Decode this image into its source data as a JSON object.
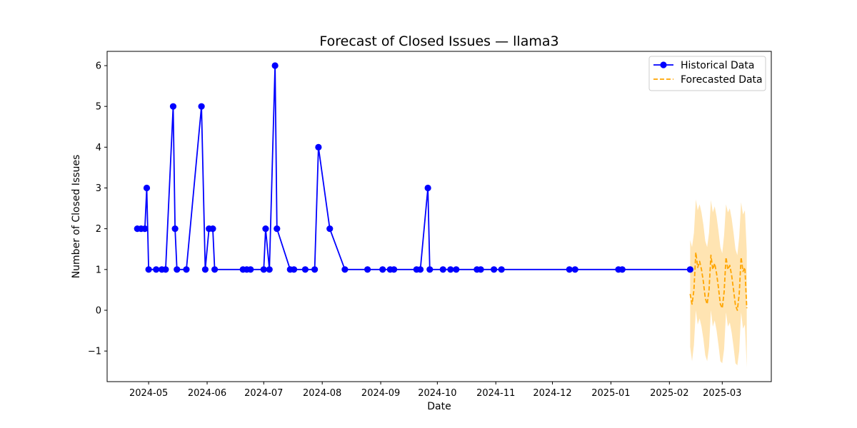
{
  "chart_data": {
    "type": "line",
    "title": "Forecast of Closed Issues — llama3",
    "xlabel": "Date",
    "ylabel": "Number of Closed Issues",
    "xlim": [
      "2024-04-09",
      "2025-03-27"
    ],
    "ylim": [
      -1.75,
      6.35
    ],
    "x_ticks": [
      "2024-05",
      "2024-06",
      "2024-07",
      "2024-08",
      "2024-09",
      "2024-10",
      "2024-11",
      "2024-12",
      "2025-01",
      "2025-02",
      "2025-03"
    ],
    "x_tick_dates": [
      "2024-05-01",
      "2024-06-01",
      "2024-07-01",
      "2024-08-01",
      "2024-09-01",
      "2024-10-01",
      "2024-11-01",
      "2024-12-01",
      "2025-01-01",
      "2025-02-01",
      "2025-03-01"
    ],
    "y_ticks": [
      -1,
      0,
      1,
      2,
      3,
      4,
      5,
      6
    ],
    "y_tick_labels": [
      "−1",
      "0",
      "1",
      "2",
      "3",
      "4",
      "5",
      "6"
    ],
    "grid": false,
    "legend_position": "top-right",
    "colors": {
      "historical": "#0000ff",
      "forecast": "#ffa500",
      "band": "#ffa500"
    },
    "series": [
      {
        "name": "Historical Data",
        "style": "solid-line-with-circle-markers",
        "x": [
          "2024-04-25",
          "2024-04-27",
          "2024-04-29",
          "2024-04-30",
          "2024-05-01",
          "2024-05-05",
          "2024-05-08",
          "2024-05-10",
          "2024-05-14",
          "2024-05-15",
          "2024-05-16",
          "2024-05-21",
          "2024-05-29",
          "2024-05-31",
          "2024-06-02",
          "2024-06-04",
          "2024-06-05",
          "2024-06-20",
          "2024-06-22",
          "2024-06-24",
          "2024-07-01",
          "2024-07-02",
          "2024-07-04",
          "2024-07-07",
          "2024-07-08",
          "2024-07-15",
          "2024-07-17",
          "2024-07-23",
          "2024-07-28",
          "2024-07-30",
          "2024-08-05",
          "2024-08-13",
          "2024-08-25",
          "2024-09-02",
          "2024-09-06",
          "2024-09-08",
          "2024-09-20",
          "2024-09-22",
          "2024-09-26",
          "2024-09-27",
          "2024-10-04",
          "2024-10-08",
          "2024-10-11",
          "2024-10-22",
          "2024-10-24",
          "2024-10-31",
          "2024-11-04",
          "2024-12-10",
          "2024-12-13",
          "2025-01-05",
          "2025-01-07",
          "2025-02-12"
        ],
        "values": [
          2,
          2,
          2,
          3,
          1,
          1,
          1,
          1,
          5,
          2,
          1,
          1,
          5,
          1,
          2,
          2,
          1,
          1,
          1,
          1,
          1,
          2,
          1,
          6,
          2,
          1,
          1,
          1,
          1,
          4,
          2,
          1,
          1,
          1,
          1,
          1,
          1,
          1,
          3,
          1,
          1,
          1,
          1,
          1,
          1,
          1,
          1,
          1,
          1,
          1,
          1,
          1
        ]
      },
      {
        "name": "Forecasted Data",
        "style": "dashed-line-with-uncertainty-band",
        "x": [
          "2025-02-12",
          "2025-02-13",
          "2025-02-14",
          "2025-02-15",
          "2025-02-16",
          "2025-02-17",
          "2025-02-18",
          "2025-02-19",
          "2025-02-20",
          "2025-02-21",
          "2025-02-22",
          "2025-02-23",
          "2025-02-24",
          "2025-02-25",
          "2025-02-26",
          "2025-02-27",
          "2025-02-28",
          "2025-03-01",
          "2025-03-02",
          "2025-03-03",
          "2025-03-04",
          "2025-03-05",
          "2025-03-06",
          "2025-03-07",
          "2025-03-08",
          "2025-03-09",
          "2025-03-10",
          "2025-03-11",
          "2025-03-12",
          "2025-03-13",
          "2025-03-14"
        ],
        "values": [
          0.4,
          0.15,
          0.5,
          1.42,
          1.05,
          1.2,
          1.0,
          0.7,
          0.3,
          0.15,
          0.5,
          1.35,
          1.0,
          1.15,
          0.9,
          0.55,
          0.15,
          0.05,
          0.45,
          1.3,
          1.0,
          1.1,
          0.85,
          0.5,
          0.12,
          0.0,
          0.4,
          1.3,
          0.95,
          1.05,
          0.05
        ],
        "lower": [
          -0.9,
          -1.25,
          -0.85,
          0.0,
          -0.35,
          -0.2,
          -0.4,
          -0.7,
          -1.1,
          -1.25,
          -0.9,
          0.0,
          -0.4,
          -0.25,
          -0.5,
          -0.85,
          -1.25,
          -1.3,
          -0.95,
          -0.05,
          -0.4,
          -0.3,
          -0.55,
          -0.9,
          -1.3,
          -1.35,
          -1.0,
          -0.05,
          -0.45,
          -0.35,
          -1.4
        ],
        "upper": [
          1.72,
          1.55,
          1.9,
          2.72,
          2.45,
          2.6,
          2.4,
          2.1,
          1.7,
          1.55,
          1.9,
          2.7,
          2.4,
          2.55,
          2.3,
          1.95,
          1.55,
          1.4,
          1.85,
          2.6,
          2.4,
          2.5,
          2.25,
          1.9,
          1.5,
          1.35,
          1.8,
          2.65,
          2.35,
          2.45,
          1.45
        ]
      }
    ]
  }
}
